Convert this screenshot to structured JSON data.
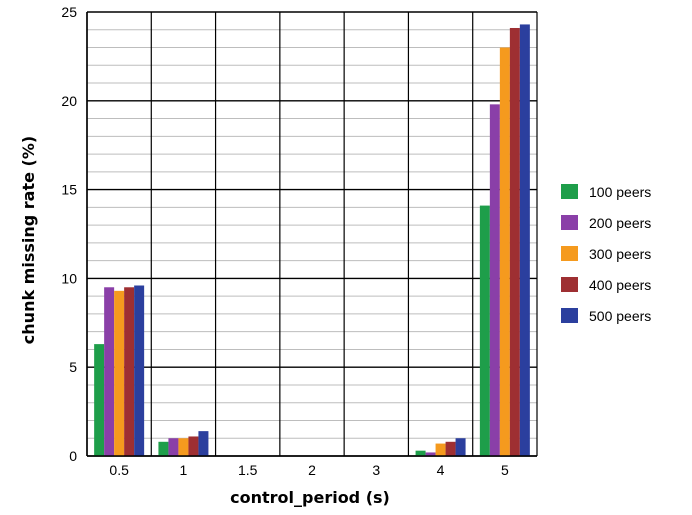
{
  "chart_data": {
    "type": "bar",
    "title": "",
    "xlabel": "control_period (s)",
    "ylabel": "chunk missing rate (%)",
    "categories": [
      "0.5",
      "1",
      "1.5",
      "2",
      "3",
      "4",
      "5"
    ],
    "ylim": [
      0,
      25
    ],
    "yticks": [
      "0",
      "5",
      "10",
      "15",
      "20",
      "25"
    ],
    "grid": "on",
    "legend_position": "right",
    "series": [
      {
        "name": "100 peers",
        "color": "#1e9e4a",
        "values": [
          6.3,
          0.8,
          0,
          0,
          0,
          0.3,
          14.1
        ]
      },
      {
        "name": "200 peers",
        "color": "#8a3fa8",
        "values": [
          9.5,
          1.0,
          0,
          0,
          0,
          0.2,
          19.8
        ]
      },
      {
        "name": "300 peers",
        "color": "#f59a1e",
        "values": [
          9.3,
          1.0,
          0,
          0,
          0,
          0.7,
          23.0
        ]
      },
      {
        "name": "400 peers",
        "color": "#9e2f32",
        "values": [
          9.5,
          1.1,
          0,
          0,
          0,
          0.8,
          24.1
        ]
      },
      {
        "name": "500 peers",
        "color": "#2b3f9e",
        "values": [
          9.6,
          1.4,
          0,
          0,
          0,
          1.0,
          24.3
        ]
      }
    ]
  }
}
